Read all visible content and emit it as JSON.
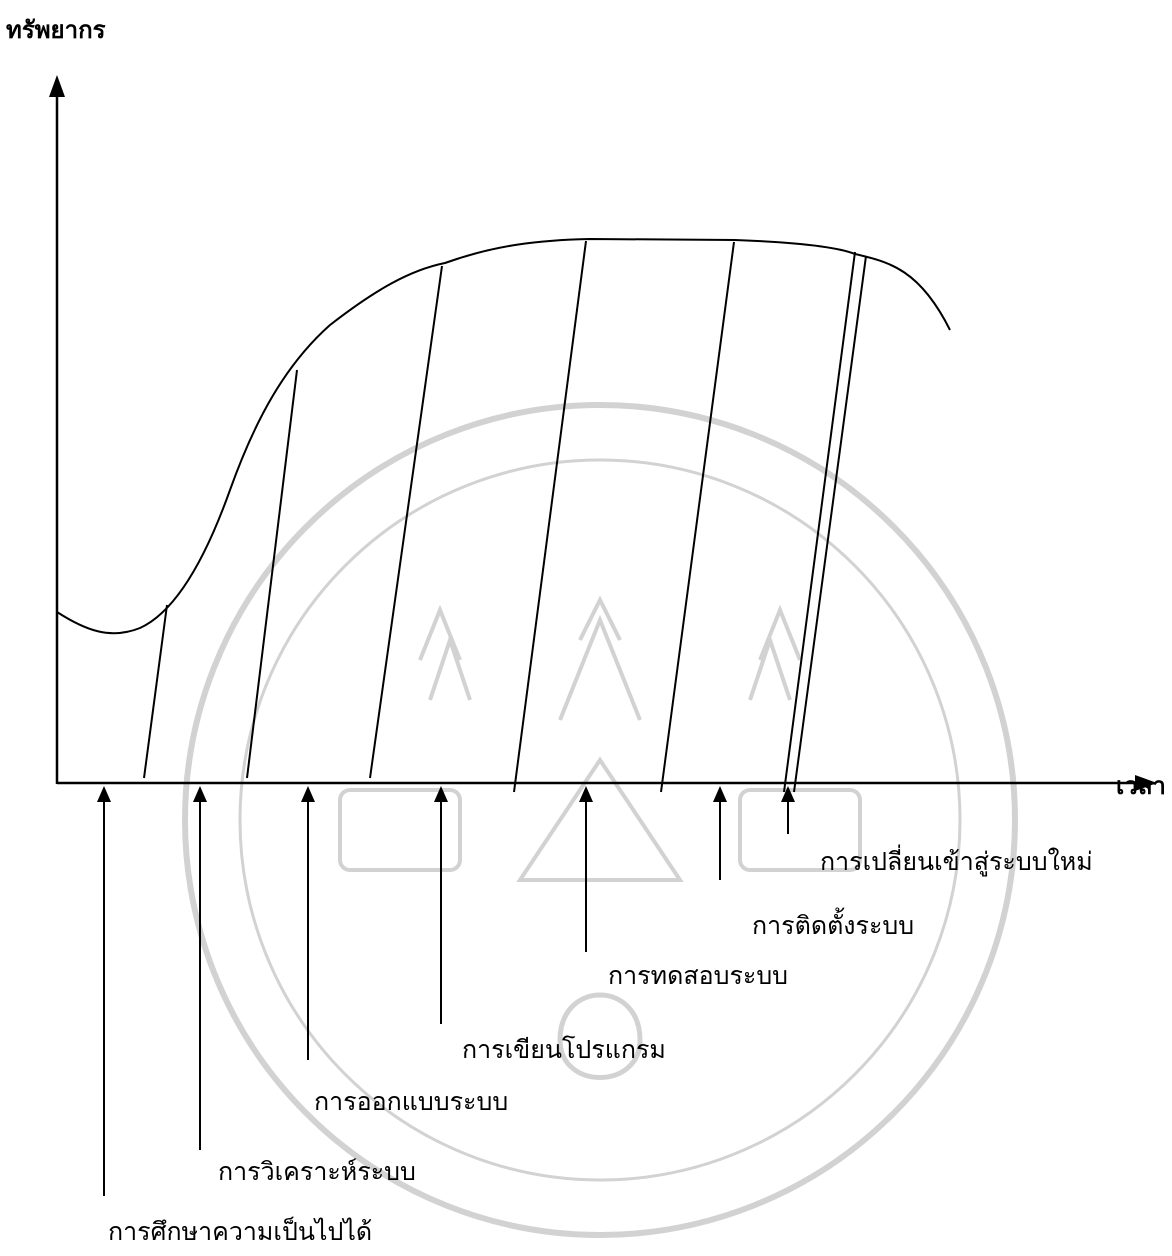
{
  "axes": {
    "y_title": "ทรัพยากร",
    "x_title": "เวลา"
  },
  "phases": [
    {
      "label": "การศึกษาความเป็นไปได้"
    },
    {
      "label": "การวิเคราะห์ระบบ"
    },
    {
      "label": "การออกแบบระบบ"
    },
    {
      "label": "การเขียนโปรแกรม"
    },
    {
      "label": "การทดสอบระบบ"
    },
    {
      "label": "การติดตั้งระบบ"
    },
    {
      "label": "การเปลี่ยนเข้าสู่ระบบใหม่"
    }
  ],
  "colors": {
    "ink": "#000000",
    "watermark": "#b8b8b8"
  }
}
